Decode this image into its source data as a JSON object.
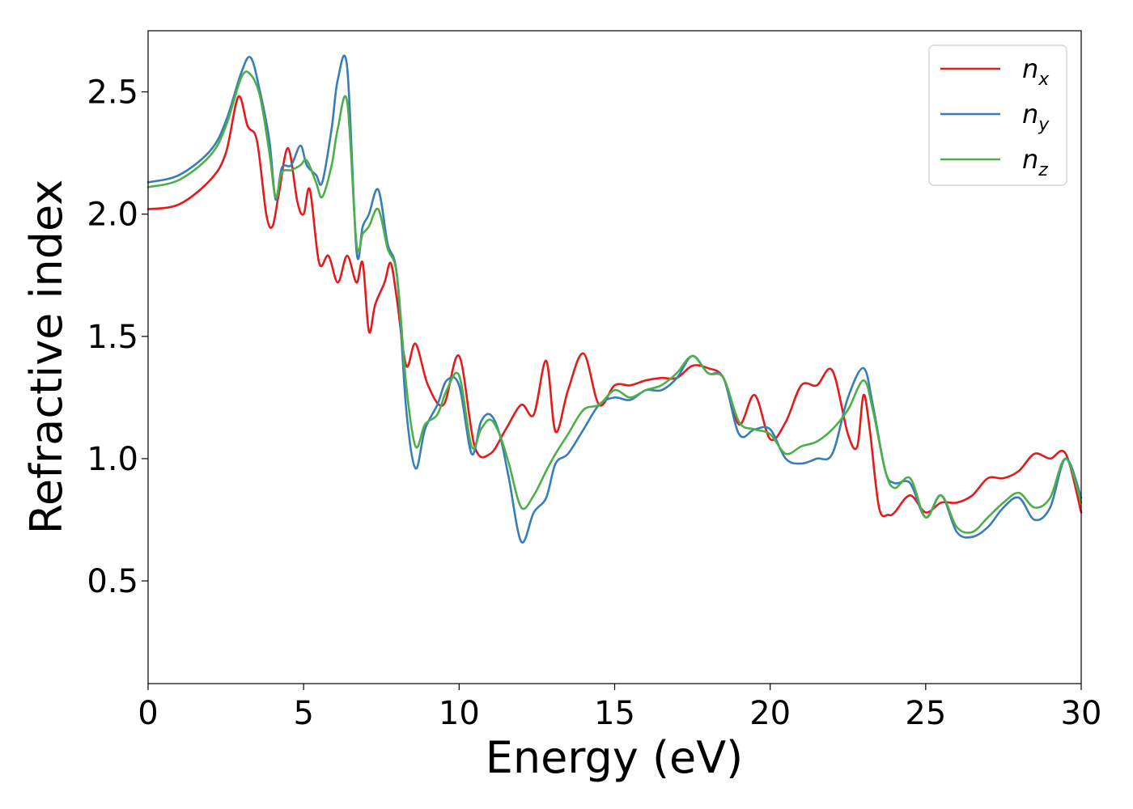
{
  "chart_data": {
    "type": "line",
    "title": "",
    "xlabel": "Energy (eV)",
    "ylabel": "Refractive index",
    "xlim": [
      0,
      30
    ],
    "ylim": [
      0.08,
      2.75
    ],
    "xticks": [
      0,
      5,
      10,
      15,
      20,
      25,
      30
    ],
    "xtick_labels": [
      "0",
      "5",
      "10",
      "15",
      "20",
      "25",
      "30"
    ],
    "yticks": [
      0.5,
      1.0,
      1.5,
      2.0,
      2.5
    ],
    "ytick_labels": [
      "0.5",
      "1.0",
      "1.5",
      "2.0",
      "2.5"
    ],
    "grid": false,
    "legend_position": "top-right",
    "series": [
      {
        "name": "n",
        "subscript": "x",
        "color": "#e41a1c",
        "x": [
          0,
          1,
          2,
          2.5,
          2.9,
          3.2,
          3.5,
          3.8,
          4.0,
          4.2,
          4.5,
          4.8,
          5.0,
          5.2,
          5.5,
          5.8,
          6.1,
          6.4,
          6.7,
          6.9,
          7.1,
          7.3,
          7.6,
          7.8,
          8.0,
          8.3,
          8.6,
          9.0,
          9.5,
          10.0,
          10.5,
          11.0,
          11.5,
          12.0,
          12.4,
          12.8,
          13.1,
          13.5,
          14.0,
          14.5,
          15.0,
          15.5,
          16.0,
          16.5,
          17.0,
          17.5,
          18.0,
          18.5,
          19.0,
          19.5,
          20.0,
          20.5,
          21.0,
          21.5,
          22.0,
          22.5,
          22.8,
          23.0,
          23.2,
          23.5,
          23.8,
          24.0,
          24.5,
          25.0,
          25.5,
          26.0,
          26.5,
          27.0,
          27.5,
          28.0,
          28.5,
          29.0,
          29.5,
          30.0
        ],
        "y": [
          2.02,
          2.04,
          2.14,
          2.25,
          2.48,
          2.36,
          2.3,
          2.0,
          1.95,
          2.08,
          2.27,
          2.05,
          2.0,
          2.1,
          1.8,
          1.83,
          1.72,
          1.83,
          1.72,
          1.8,
          1.52,
          1.63,
          1.72,
          1.8,
          1.65,
          1.38,
          1.47,
          1.3,
          1.22,
          1.42,
          1.05,
          1.02,
          1.12,
          1.22,
          1.18,
          1.4,
          1.11,
          1.28,
          1.43,
          1.22,
          1.3,
          1.3,
          1.32,
          1.33,
          1.33,
          1.38,
          1.37,
          1.33,
          1.14,
          1.26,
          1.08,
          1.15,
          1.3,
          1.3,
          1.36,
          1.1,
          1.05,
          1.26,
          1.12,
          0.8,
          0.77,
          0.78,
          0.85,
          0.78,
          0.82,
          0.82,
          0.85,
          0.92,
          0.92,
          0.95,
          1.02,
          1.0,
          1.02,
          0.78
        ]
      },
      {
        "name": "n",
        "subscript": "y",
        "color": "#377eb8",
        "x": [
          0,
          1,
          2,
          2.5,
          3.0,
          3.3,
          3.6,
          3.9,
          4.1,
          4.3,
          4.6,
          4.9,
          5.1,
          5.4,
          5.6,
          5.9,
          6.1,
          6.4,
          6.7,
          6.9,
          7.1,
          7.4,
          7.7,
          8.0,
          8.3,
          8.6,
          8.9,
          9.3,
          9.6,
          10.0,
          10.4,
          10.7,
          11.0,
          11.3,
          11.6,
          12.0,
          12.4,
          12.8,
          13.1,
          13.5,
          14.0,
          14.5,
          15.0,
          15.5,
          16.0,
          16.5,
          17.0,
          17.5,
          18.0,
          18.5,
          19.0,
          19.5,
          20.0,
          20.5,
          21.0,
          21.5,
          22.0,
          22.5,
          23.0,
          23.3,
          23.7,
          24.0,
          24.5,
          25.0,
          25.5,
          26.0,
          26.5,
          27.0,
          27.5,
          28.0,
          28.5,
          29.0,
          29.5,
          30.0
        ],
        "y": [
          2.13,
          2.16,
          2.26,
          2.38,
          2.58,
          2.64,
          2.5,
          2.3,
          2.06,
          2.19,
          2.2,
          2.28,
          2.2,
          2.16,
          2.13,
          2.35,
          2.55,
          2.6,
          1.85,
          1.95,
          2.0,
          2.1,
          1.88,
          1.75,
          1.2,
          0.96,
          1.12,
          1.22,
          1.32,
          1.3,
          1.02,
          1.15,
          1.18,
          1.1,
          0.92,
          0.66,
          0.78,
          0.84,
          0.98,
          1.02,
          1.12,
          1.22,
          1.25,
          1.24,
          1.28,
          1.28,
          1.33,
          1.42,
          1.35,
          1.33,
          1.1,
          1.12,
          1.12,
          1.0,
          0.98,
          1.0,
          1.02,
          1.25,
          1.37,
          1.22,
          0.95,
          0.9,
          0.9,
          0.76,
          0.85,
          0.7,
          0.68,
          0.72,
          0.8,
          0.84,
          0.75,
          0.8,
          1.0,
          0.84
        ]
      },
      {
        "name": "n",
        "subscript": "z",
        "color": "#4daf4a",
        "x": [
          0,
          1,
          2,
          2.5,
          3.0,
          3.3,
          3.6,
          3.9,
          4.1,
          4.3,
          4.6,
          4.9,
          5.1,
          5.4,
          5.6,
          5.9,
          6.1,
          6.4,
          6.7,
          6.9,
          7.1,
          7.4,
          7.7,
          8.0,
          8.3,
          8.6,
          8.9,
          9.3,
          9.6,
          10.0,
          10.4,
          10.7,
          11.0,
          11.3,
          11.6,
          12.0,
          12.4,
          12.8,
          13.1,
          13.5,
          14.0,
          14.5,
          15.0,
          15.5,
          16.0,
          16.5,
          17.0,
          17.5,
          18.0,
          18.5,
          19.0,
          19.5,
          20.0,
          20.5,
          21.0,
          21.5,
          22.0,
          22.5,
          23.0,
          23.3,
          23.7,
          24.0,
          24.5,
          25.0,
          25.5,
          26.0,
          26.5,
          27.0,
          27.5,
          28.0,
          28.5,
          29.0,
          29.5,
          30.0
        ],
        "y": [
          2.11,
          2.14,
          2.24,
          2.36,
          2.56,
          2.57,
          2.48,
          2.25,
          2.07,
          2.17,
          2.18,
          2.2,
          2.22,
          2.13,
          2.07,
          2.2,
          2.35,
          2.46,
          1.88,
          1.92,
          1.95,
          2.02,
          1.86,
          1.75,
          1.3,
          1.05,
          1.14,
          1.18,
          1.28,
          1.34,
          1.05,
          1.12,
          1.16,
          1.1,
          0.98,
          0.8,
          0.85,
          0.95,
          1.02,
          1.1,
          1.2,
          1.22,
          1.28,
          1.25,
          1.28,
          1.3,
          1.35,
          1.42,
          1.35,
          1.33,
          1.15,
          1.12,
          1.1,
          1.02,
          1.05,
          1.07,
          1.12,
          1.2,
          1.32,
          1.2,
          0.95,
          0.88,
          0.92,
          0.76,
          0.85,
          0.72,
          0.7,
          0.76,
          0.82,
          0.86,
          0.8,
          0.84,
          1.0,
          0.82
        ]
      }
    ]
  }
}
